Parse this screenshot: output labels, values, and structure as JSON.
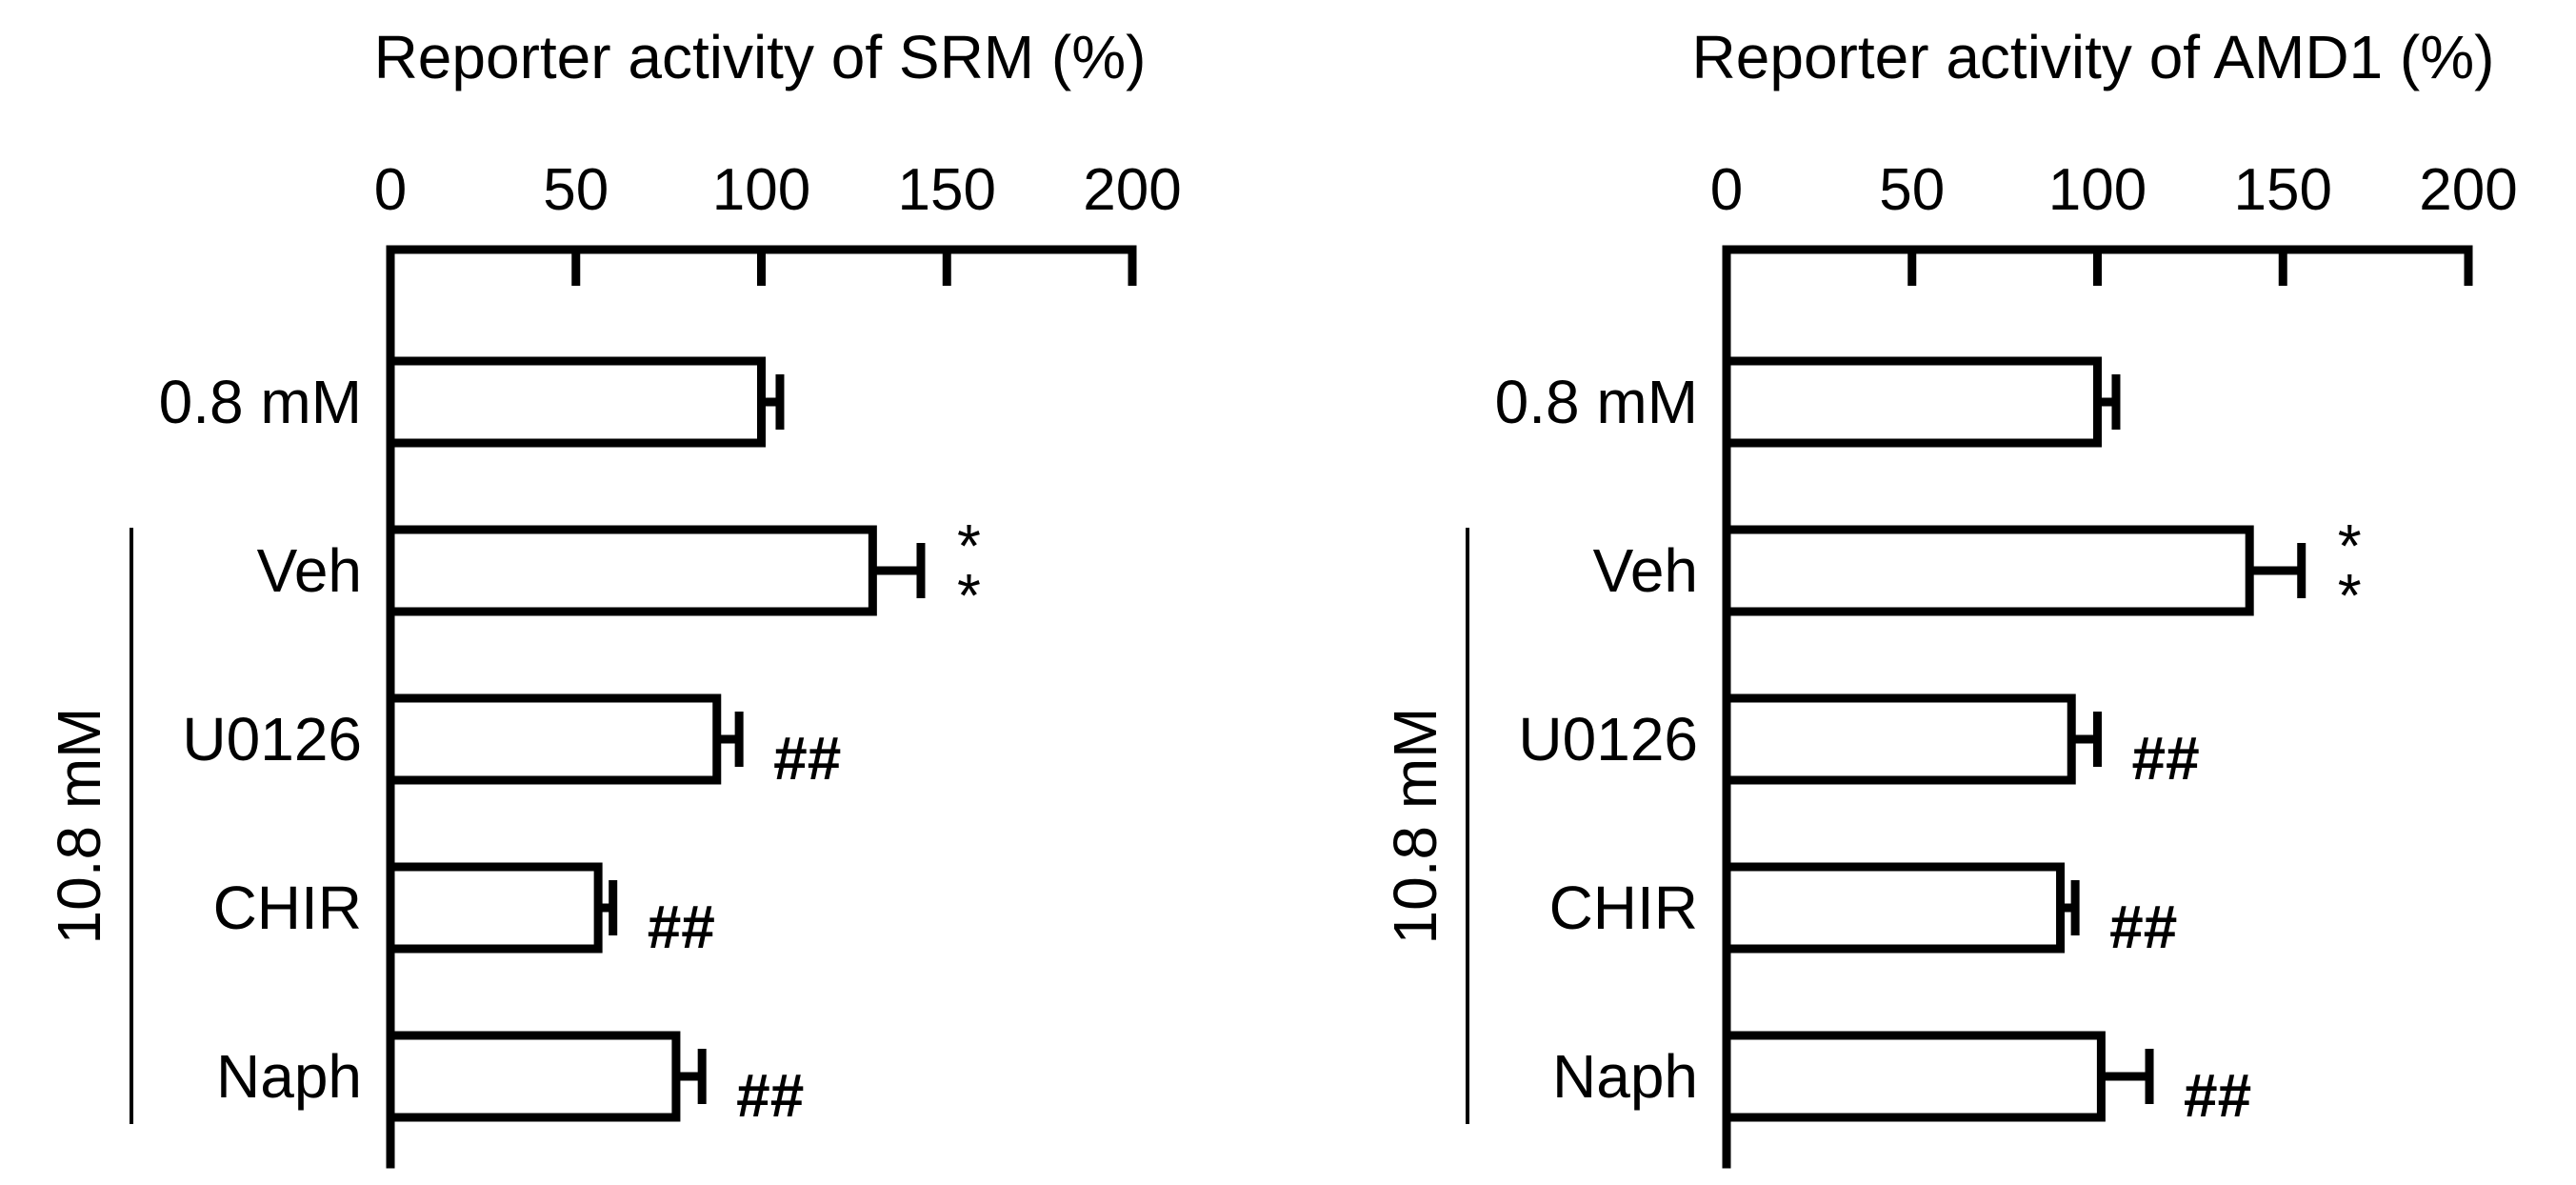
{
  "chart_data": [
    {
      "type": "bar",
      "orientation": "horizontal",
      "title": "Reporter activity of SRM  (%)",
      "xlabel": "Reporter activity of SRM  (%)",
      "ylabel": "",
      "xlim": [
        0,
        200
      ],
      "ticks": [
        "0",
        "50",
        "100",
        "150",
        "200"
      ],
      "tick_values": [
        0,
        50,
        100,
        150,
        200
      ],
      "categories": [
        "0.8 mM",
        "Veh",
        "U0126",
        "CHIR",
        "Naph"
      ],
      "values": [
        100,
        130,
        88,
        56,
        77
      ],
      "errors": [
        5,
        13,
        6,
        4,
        7
      ],
      "annotations": [
        "",
        "*\n*",
        "##",
        "##",
        "##"
      ],
      "group_label": "10.8 mM",
      "group_members": [
        "Veh",
        "U0126",
        "CHIR",
        "Naph"
      ],
      "grid": false,
      "bar_color": "#ffffff",
      "edge_color": "#000000"
    },
    {
      "type": "bar",
      "orientation": "horizontal",
      "title": "Reporter activity of AMD1  (%)",
      "xlabel": "Reporter activity of AMD1  (%)",
      "ylabel": "",
      "xlim": [
        0,
        200
      ],
      "ticks": [
        "0",
        "50",
        "100",
        "150",
        "200"
      ],
      "tick_values": [
        0,
        50,
        100,
        150,
        200
      ],
      "categories": [
        "0.8 mM",
        "Veh",
        "U0126",
        "CHIR",
        "Naph"
      ],
      "values": [
        100,
        141,
        93,
        90,
        101
      ],
      "errors": [
        5,
        14,
        7,
        4,
        13
      ],
      "annotations": [
        "",
        "*\n*",
        "##",
        "##",
        "##"
      ],
      "group_label": "10.8 mM",
      "group_members": [
        "Veh",
        "U0126",
        "CHIR",
        "Naph"
      ],
      "grid": false,
      "bar_color": "#ffffff",
      "edge_color": "#000000"
    }
  ]
}
